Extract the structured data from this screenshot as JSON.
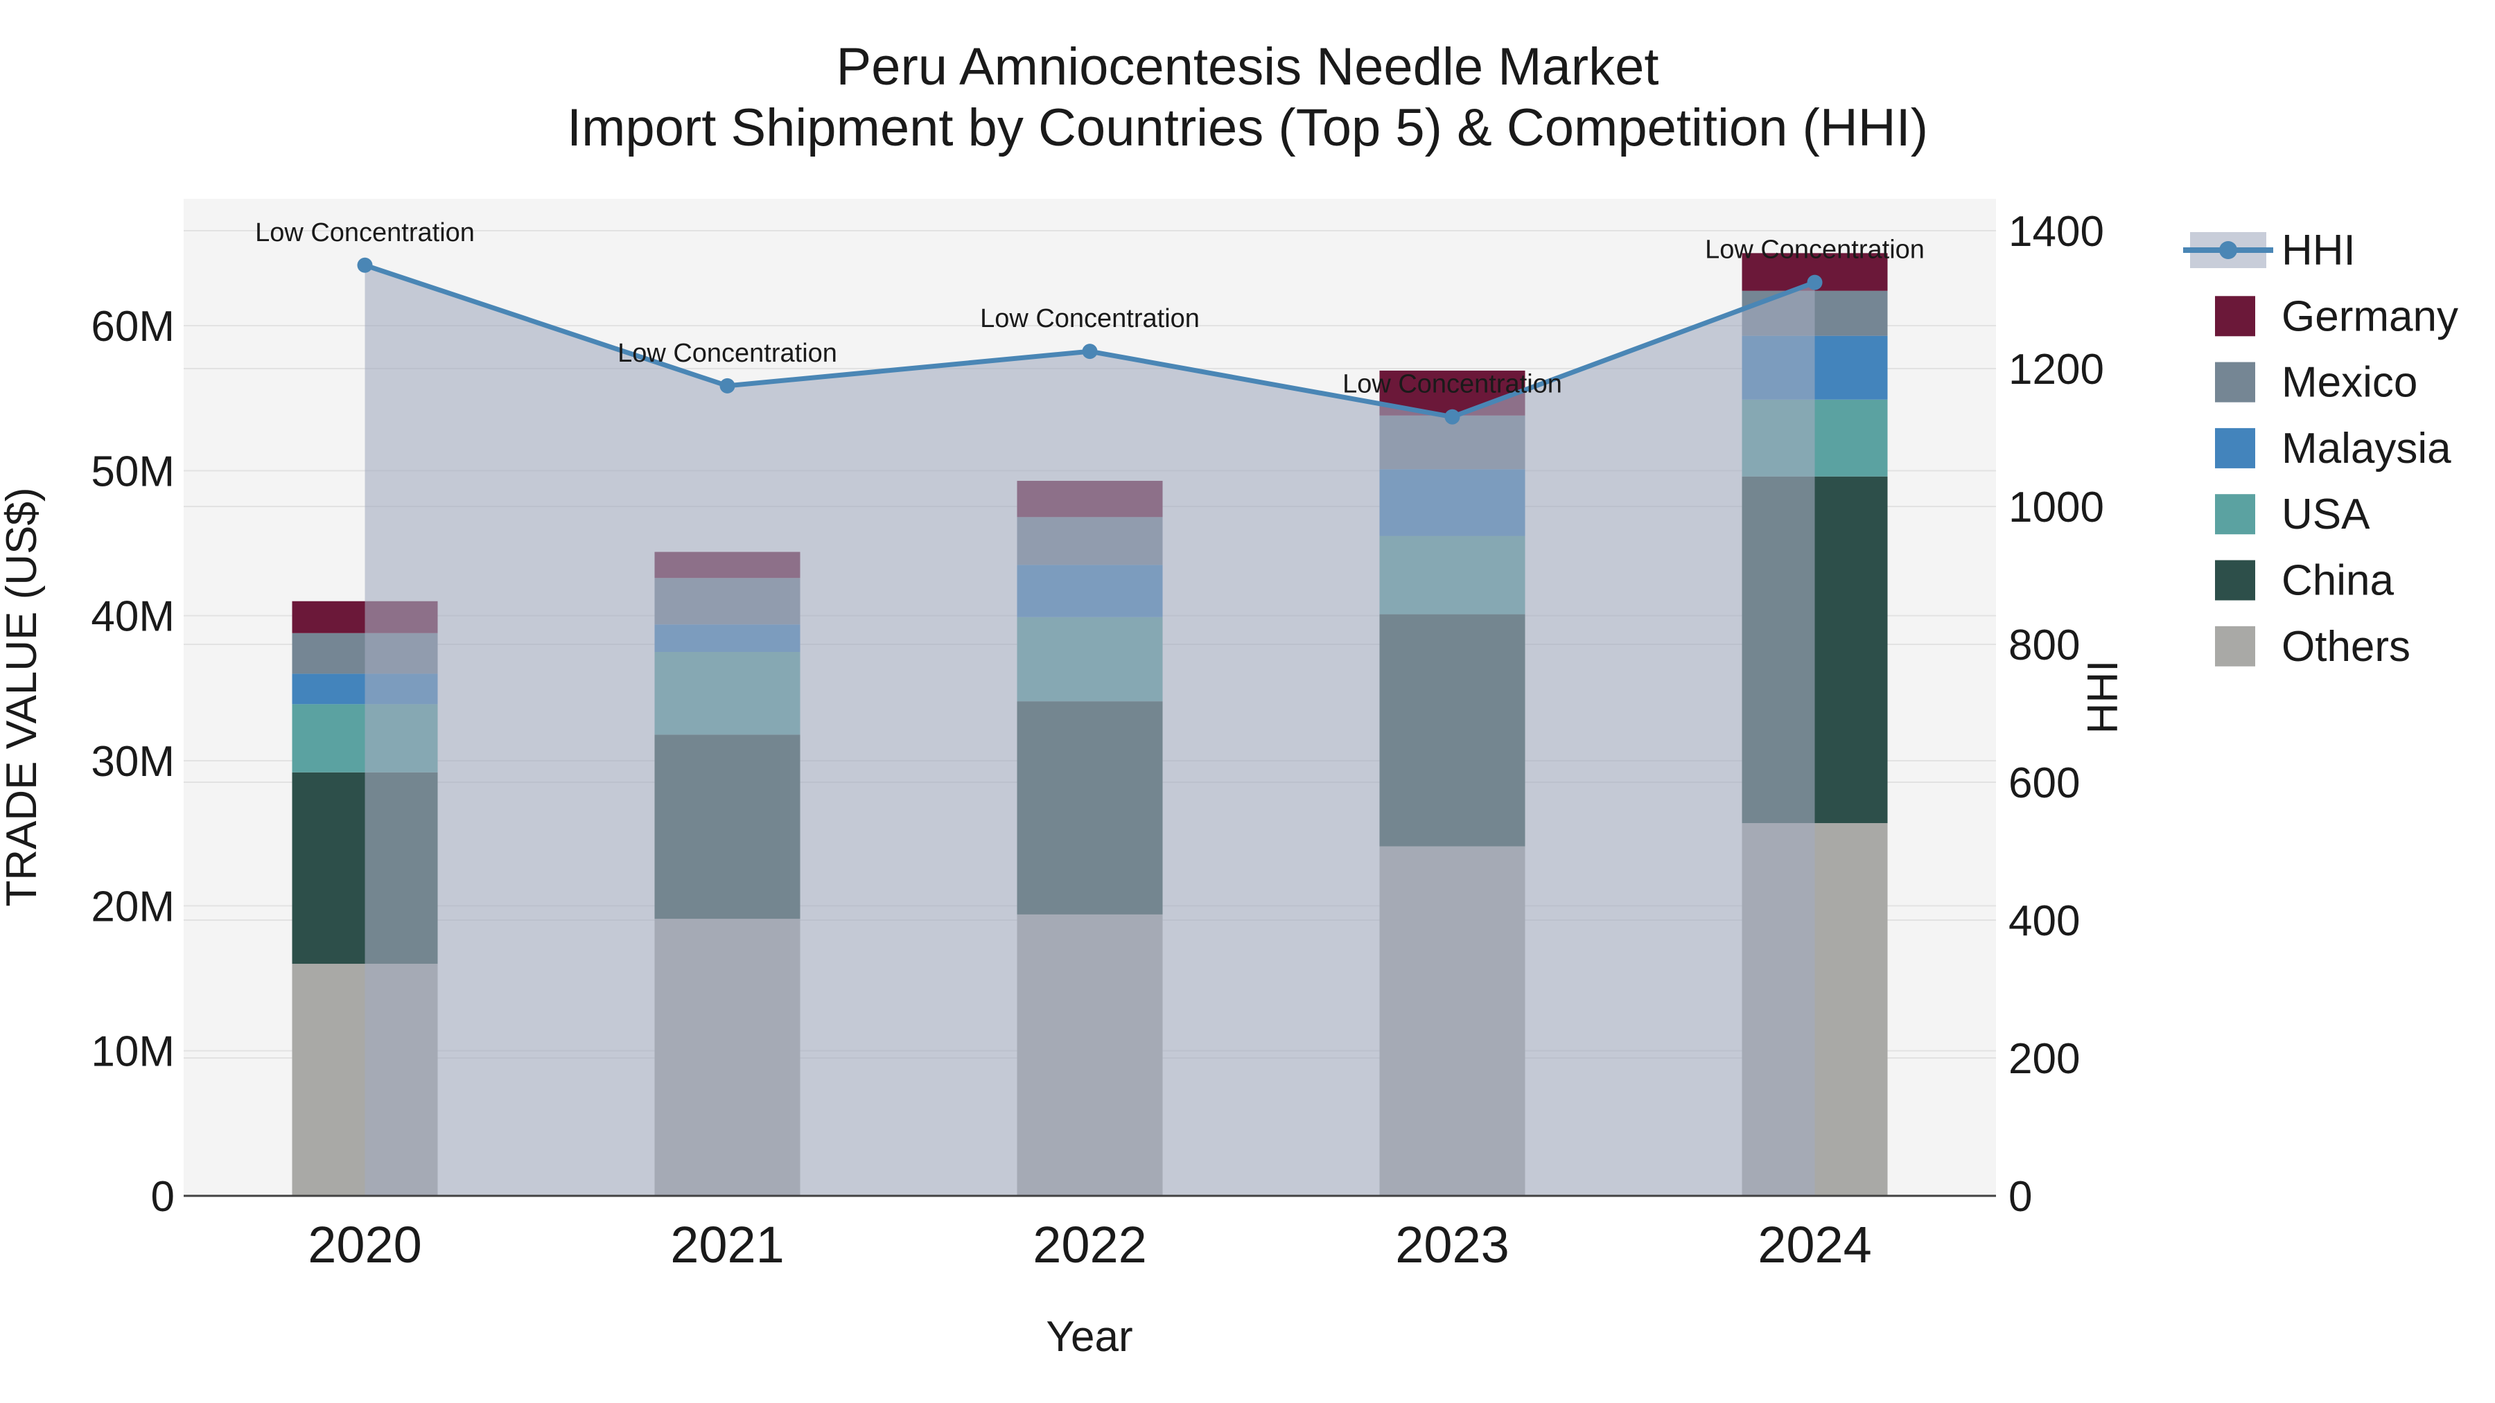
{
  "title": {
    "line1": "Peru Amniocentesis Needle Market",
    "line2": "Import Shipment by Countries (Top 5) & Competition (HHI)"
  },
  "axes": {
    "x": {
      "title": "Year",
      "tick_labels": [
        "2020",
        "2021",
        "2022",
        "2023",
        "2024"
      ]
    },
    "y_left": {
      "title": "TRADE VALUE (US$)",
      "tick_labels": [
        "0",
        "10M",
        "20M",
        "30M",
        "40M",
        "50M",
        "60M"
      ],
      "tick_values": [
        0,
        10,
        20,
        30,
        40,
        50,
        60
      ]
    },
    "y_right": {
      "title": "HHI",
      "tick_labels": [
        "0",
        "200",
        "400",
        "600",
        "800",
        "1000",
        "1200",
        "1400"
      ],
      "tick_values": [
        0,
        200,
        400,
        600,
        800,
        1000,
        1200,
        1400
      ]
    }
  },
  "annotations": {
    "label": "Low Concentration"
  },
  "legend": [
    {
      "label": "HHI",
      "type": "line",
      "color": "#4A86B5"
    },
    {
      "label": "Germany",
      "type": "swatch",
      "color": "#6B1839"
    },
    {
      "label": "Mexico",
      "type": "swatch",
      "color": "#758694"
    },
    {
      "label": "Malaysia",
      "type": "swatch",
      "color": "#4384BC"
    },
    {
      "label": "USA",
      "type": "swatch",
      "color": "#5BA2A1"
    },
    {
      "label": "China",
      "type": "swatch",
      "color": "#2D4F4A"
    },
    {
      "label": "Others",
      "type": "swatch",
      "color": "#A9A9A6"
    }
  ],
  "colors": {
    "hhi_line": "#4A86B5",
    "hhi_area_fill": "rgba(163,172,192,0.6)",
    "plot_background": "#f4f4f4",
    "gridline": "#e2e2e2",
    "axis_line": "#424242",
    "text": "#1a1a1a"
  },
  "chart_data": {
    "type": "bar",
    "subtype": "stacked-bars-with-line",
    "categories": [
      "2020",
      "2021",
      "2022",
      "2023",
      "2024"
    ],
    "bar_units": "Trade value, millions US$",
    "bar_series": [
      {
        "name": "Others",
        "color": "#A9A9A6",
        "values": [
          16.0,
          19.1,
          19.4,
          24.1,
          25.7
        ]
      },
      {
        "name": "China",
        "color": "#2D4F4A",
        "values": [
          13.2,
          12.7,
          14.7,
          16.0,
          23.9
        ]
      },
      {
        "name": "USA",
        "color": "#5BA2A1",
        "values": [
          4.7,
          5.7,
          5.8,
          5.4,
          5.3
        ]
      },
      {
        "name": "Malaysia",
        "color": "#4384BC",
        "values": [
          2.1,
          1.9,
          3.6,
          4.6,
          4.4
        ]
      },
      {
        "name": "Mexico",
        "color": "#758694",
        "values": [
          2.8,
          3.2,
          3.3,
          3.7,
          3.1
        ]
      },
      {
        "name": "Germany",
        "color": "#6B1839",
        "values": [
          2.2,
          1.8,
          2.5,
          3.1,
          2.6
        ]
      }
    ],
    "bar_totals": [
      41.0,
      44.4,
      49.3,
      56.9,
      65.0
    ],
    "line_series": {
      "name": "HHI",
      "values": [
        1350,
        1175,
        1225,
        1130,
        1325
      ],
      "color": "#4A86B5",
      "area_fill": "rgba(163,172,192,0.6)",
      "point_annotations": [
        "Low Concentration",
        "Low Concentration",
        "Low Concentration",
        "Low Concentration",
        "Low Concentration"
      ]
    },
    "xlabel": "Year",
    "ylabel_left": "TRADE VALUE (US$)",
    "ylabel_right": "HHI",
    "ylim_left": [
      0,
      68.75
    ],
    "ylim_right": [
      0,
      1446
    ],
    "grid": true,
    "legend_position": "right"
  }
}
